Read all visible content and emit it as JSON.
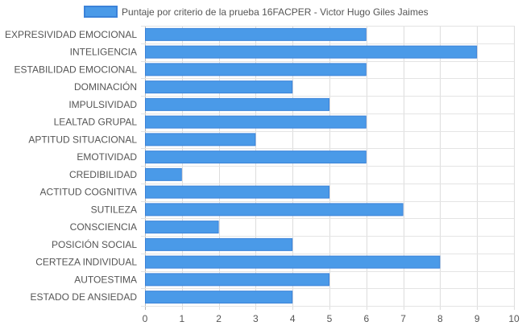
{
  "chart_data": {
    "type": "bar",
    "orientation": "horizontal",
    "categories": [
      "EXPRESIVIDAD EMOCIONAL",
      "INTELIGENCIA",
      "ESTABILIDAD EMOCIONAL",
      "DOMINACIÓN",
      "IMPULSIVIDAD",
      "LEALTAD GRUPAL",
      "APTITUD SITUACIONAL",
      "EMOTIVIDAD",
      "CREDIBILIDAD",
      "ACTITUD COGNITIVA",
      "SUTILEZA",
      "CONSCIENCIA",
      "POSICIÓN SOCIAL",
      "CERTEZA INDIVIDUAL",
      "AUTOESTIMA",
      "ESTADO DE ANSIEDAD"
    ],
    "series": [
      {
        "name": "Puntaje por criterio de la prueba 16FACPER - Victor Hugo Giles Jaimes",
        "values": [
          6,
          9,
          6,
          4,
          5,
          6,
          3,
          6,
          1,
          5,
          7,
          2,
          4,
          8,
          5,
          4
        ],
        "color": "#4a9ae8",
        "border_color": "#3b82d9"
      }
    ],
    "xlim": [
      0,
      10
    ],
    "xticks": [
      0,
      1,
      2,
      3,
      4,
      5,
      6,
      7,
      8,
      9,
      10
    ],
    "grid": true,
    "legend_position": "top-center"
  }
}
